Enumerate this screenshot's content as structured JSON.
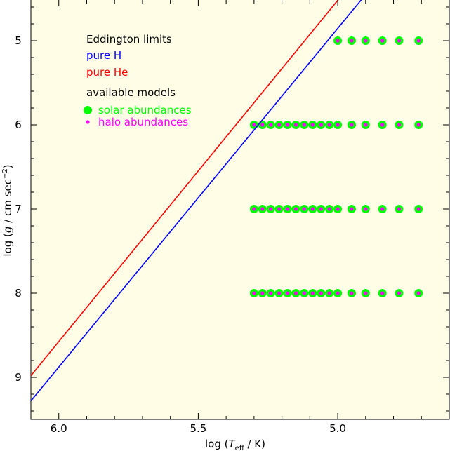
{
  "colors": {
    "plot_background": "#fffde6",
    "pure_h": "#0000ff",
    "pure_he": "#ff0000",
    "solar": "#00ff00",
    "halo": "#ff00ff",
    "text": "#000000"
  },
  "chart_data": {
    "type": "scatter",
    "title": "",
    "xlabel_parts": {
      "prefix": "log (",
      "var": "T",
      "sub": "eff",
      "suffix": " / K)"
    },
    "ylabel_parts": {
      "prefix": "log (",
      "var": "g",
      "middle": " / cm sec",
      "sup": "−2",
      "suffix": ")"
    },
    "x_reversed": true,
    "xlim": [
      6.1,
      4.6
    ],
    "ylim": [
      4.5,
      9.5
    ],
    "y_reversed": true,
    "x_ticks": [
      6.0,
      5.5,
      5.0
    ],
    "x_tick_labels": [
      "6.0",
      "5.5",
      "5.0"
    ],
    "y_ticks": [
      5,
      6,
      7,
      8,
      9
    ],
    "y_tick_labels": [
      "5",
      "6",
      "7",
      "8",
      "9"
    ],
    "legend": {
      "heading": "Eddington limits",
      "pure_h": "pure H",
      "pure_he": "pure He",
      "models_heading": "available models",
      "solar": "solar abundances",
      "halo": "halo abundances"
    },
    "lines": [
      {
        "name": "pure H",
        "color": "#0000ff",
        "x": [
          6.1,
          4.912
        ],
        "y": [
          9.28,
          4.5
        ]
      },
      {
        "name": "pure He",
        "color": "#ff0000",
        "x": [
          6.1,
          4.995
        ],
        "y": [
          8.98,
          4.5
        ]
      }
    ],
    "model_grid": {
      "rows": [
        {
          "log_g": 5,
          "log_teff": [
            5.0,
            4.95,
            4.9,
            4.84,
            4.78,
            4.71
          ]
        },
        {
          "log_g": 6,
          "log_teff": [
            5.3,
            5.27,
            5.24,
            5.21,
            5.18,
            5.15,
            5.12,
            5.09,
            5.06,
            5.03,
            5.0,
            4.95,
            4.9,
            4.84,
            4.78,
            4.71
          ]
        },
        {
          "log_g": 7,
          "log_teff": [
            5.3,
            5.27,
            5.24,
            5.21,
            5.18,
            5.15,
            5.12,
            5.09,
            5.06,
            5.03,
            5.0,
            4.95,
            4.9,
            4.84,
            4.78,
            4.71
          ]
        },
        {
          "log_g": 8,
          "log_teff": [
            5.3,
            5.27,
            5.24,
            5.21,
            5.18,
            5.15,
            5.12,
            5.09,
            5.06,
            5.03,
            5.0,
            4.95,
            4.9,
            4.84,
            4.78,
            4.71
          ]
        }
      ]
    }
  }
}
